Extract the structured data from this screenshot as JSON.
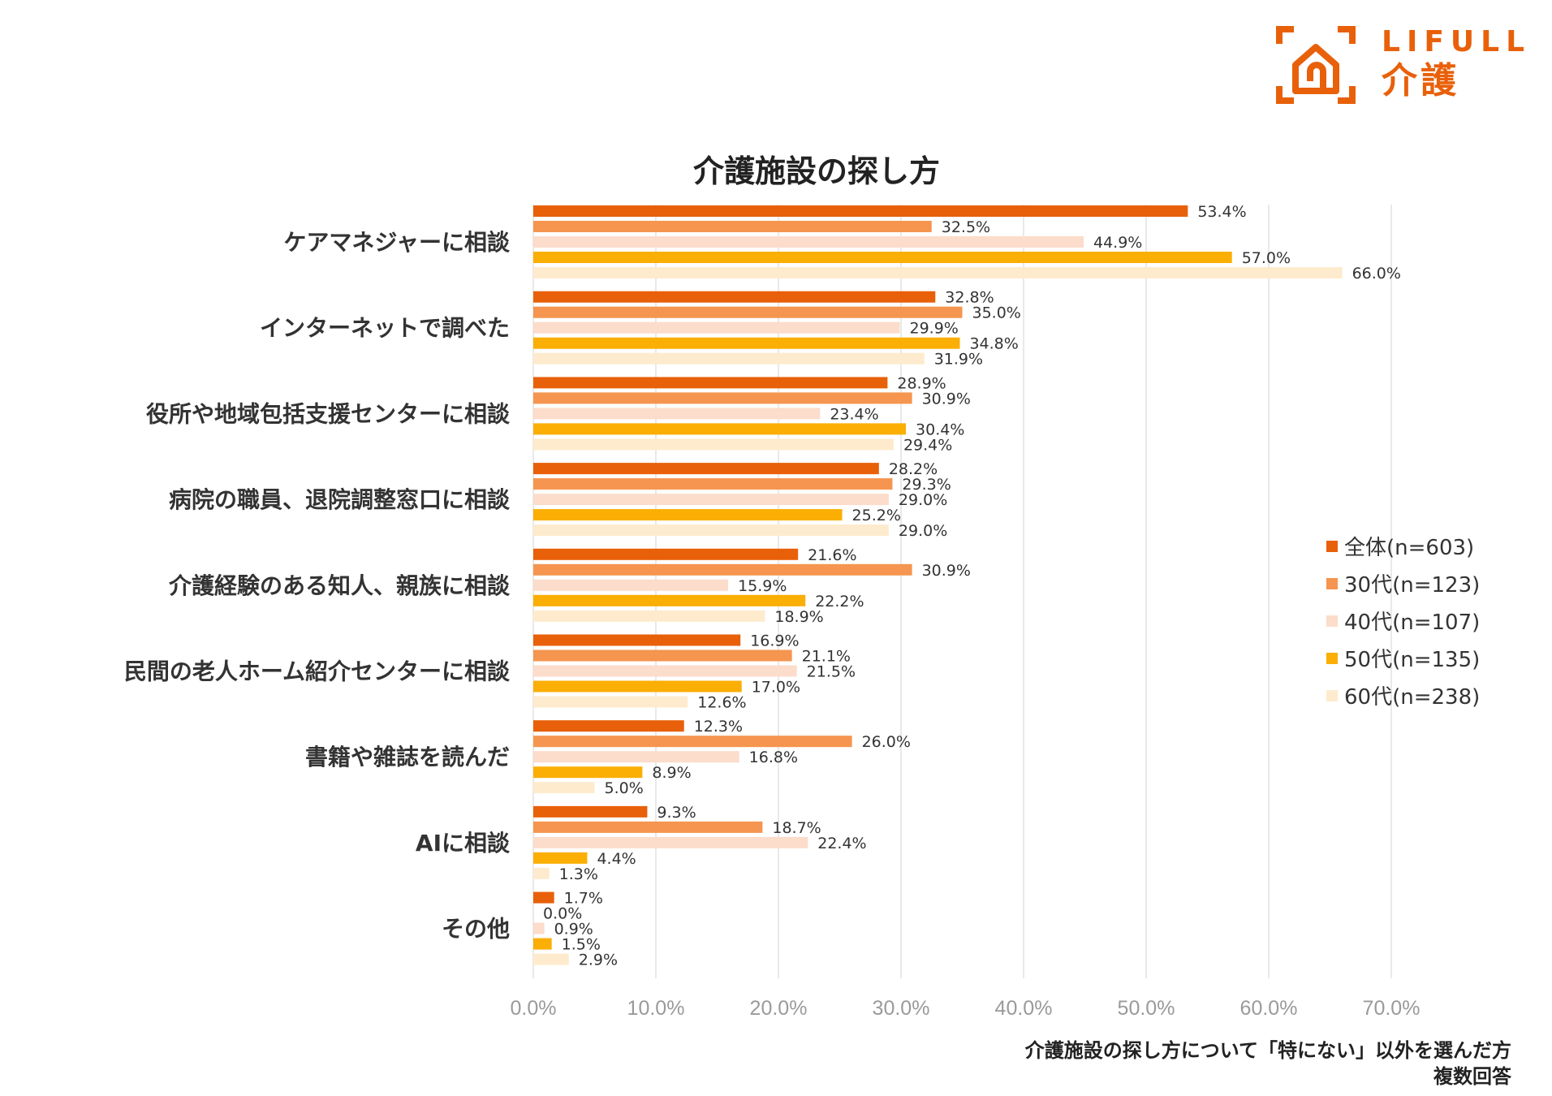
{
  "logo": {
    "brand": "LIFULL",
    "sub": "介護"
  },
  "chart_data": {
    "type": "bar",
    "orientation": "horizontal",
    "title": "介護施設の探し方",
    "categories": [
      "ケアマネジャーに相談",
      "インターネットで調べた",
      "役所や地域包括支援センターに相談",
      "病院の職員、退院調整窓口に相談",
      "介護経験のある知人、親族に相談",
      "民間の老人ホーム紹介センターに相談",
      "書籍や雑誌を読んだ",
      "AIに相談",
      "その他"
    ],
    "series": [
      {
        "name": "全体(n=603)",
        "color": "#E8600A",
        "values": [
          53.4,
          32.8,
          28.9,
          28.2,
          21.6,
          16.9,
          12.3,
          9.3,
          1.7
        ]
      },
      {
        "name": "30代(n=123)",
        "color": "#F5954F",
        "values": [
          32.5,
          35.0,
          30.9,
          29.3,
          30.9,
          21.1,
          26.0,
          18.7,
          0.0
        ]
      },
      {
        "name": "40代(n=107)",
        "color": "#FCDCCB",
        "values": [
          44.9,
          29.9,
          23.4,
          29.0,
          15.9,
          21.5,
          16.8,
          22.4,
          0.9
        ]
      },
      {
        "name": "50代(n=135)",
        "color": "#FBAE04",
        "values": [
          57.0,
          34.8,
          30.4,
          25.2,
          22.2,
          17.0,
          8.9,
          4.4,
          1.5
        ]
      },
      {
        "name": "60代(n=238)",
        "color": "#FEEBCD",
        "values": [
          66.0,
          31.9,
          29.4,
          29.0,
          18.9,
          12.6,
          5.0,
          1.3,
          2.9
        ]
      }
    ],
    "xlim": [
      0,
      70
    ],
    "xticks": [
      "0.0%",
      "10.0%",
      "20.0%",
      "30.0%",
      "40.0%",
      "50.0%",
      "60.0%",
      "70.0%"
    ],
    "grid": true,
    "legend": "right",
    "note": [
      "介護施設の探し方について「特にない」以外を選んだ方",
      "複数回答"
    ]
  }
}
